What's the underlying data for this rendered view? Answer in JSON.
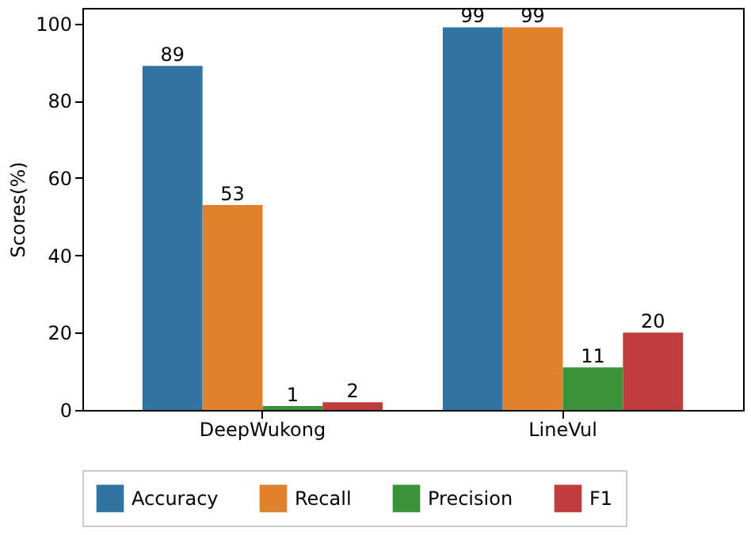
{
  "chart_data": {
    "type": "bar",
    "ylabel": "Scores(%)",
    "categories": [
      "DeepWukong",
      "LineVul"
    ],
    "series": [
      {
        "name": "Accuracy",
        "color": "#3274a1",
        "values": [
          89,
          99
        ]
      },
      {
        "name": "Recall",
        "color": "#e1812c",
        "values": [
          53,
          99
        ]
      },
      {
        "name": "Precision",
        "color": "#3a923a",
        "values": [
          1,
          11
        ]
      },
      {
        "name": "F1",
        "color": "#c03d3e",
        "values": [
          2,
          20
        ]
      }
    ],
    "ylim": [
      0,
      104
    ],
    "yticks": [
      0,
      20,
      40,
      60,
      80,
      100
    ],
    "data_labels": true,
    "legend": "bottom",
    "grid": false
  }
}
